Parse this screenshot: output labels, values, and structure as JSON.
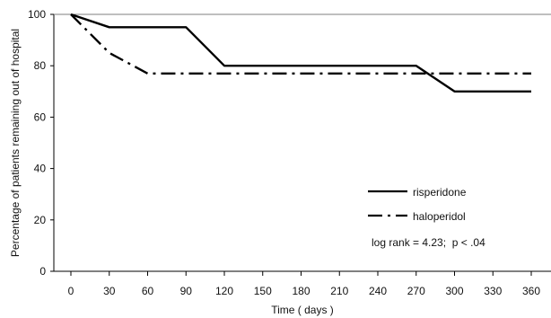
{
  "chart_data": {
    "type": "line",
    "title": "",
    "xlabel": "Time  ( days )",
    "ylabel": "Percentage of patients remaining out of hospital",
    "x_ticks": [
      0,
      30,
      60,
      90,
      120,
      150,
      180,
      210,
      240,
      270,
      300,
      330,
      360
    ],
    "y_ticks": [
      0,
      20,
      40,
      60,
      80,
      100
    ],
    "xlim": [
      0,
      360
    ],
    "ylim": [
      0,
      100
    ],
    "grid": false,
    "legend_position": "bottom-right",
    "series": [
      {
        "name": "risperidone",
        "color": "#000000",
        "dash": "solid",
        "x": [
          0,
          30,
          90,
          120,
          270,
          300,
          360
        ],
        "y": [
          100,
          95,
          95,
          80,
          80,
          70,
          70
        ]
      },
      {
        "name": "haloperidol",
        "color": "#000000",
        "dash": "dash-dot",
        "x": [
          0,
          30,
          60,
          360
        ],
        "y": [
          100,
          85,
          77,
          77
        ]
      }
    ],
    "annotation": "log rank = 4.23;  p < .04"
  }
}
